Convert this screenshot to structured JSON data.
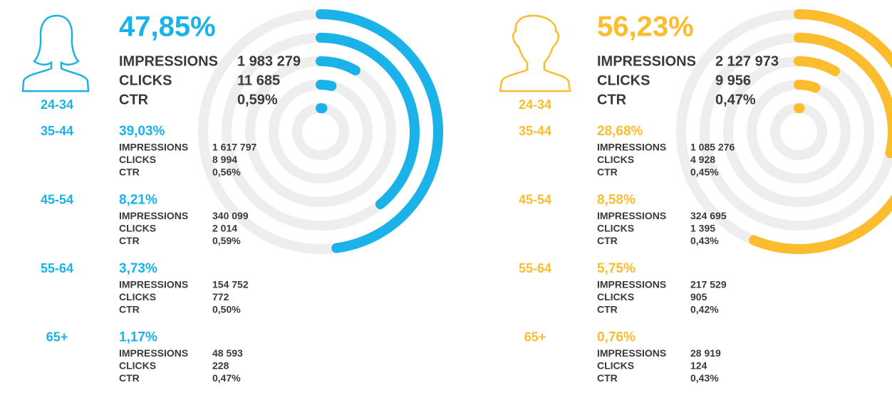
{
  "chart_data": [
    {
      "type": "radial-bar",
      "color": "#1ab2e8",
      "ylim": [
        0,
        100
      ],
      "metric_labels": [
        "IMPRESSIONS",
        "CLICKS",
        "CTR"
      ],
      "categories": [
        "24-34",
        "35-44",
        "45-54",
        "55-64",
        "65+"
      ],
      "values": [
        47.85,
        39.03,
        8.21,
        3.73,
        1.17
      ],
      "value_labels": [
        "47,85%",
        "39,03%",
        "8,21%",
        "3,73%",
        "1,17%"
      ],
      "impressions": [
        "1 983 279",
        "1 617 797",
        "340 099",
        "154 752",
        "48 593"
      ],
      "clicks": [
        "11 685",
        "8 994",
        "2 014",
        "772",
        "228"
      ],
      "ctr": [
        "0,59%",
        "0,56%",
        "0,59%",
        "0,50%",
        "0,47%"
      ]
    },
    {
      "type": "radial-bar",
      "color": "#fbbd2e",
      "ylim": [
        0,
        100
      ],
      "metric_labels": [
        "IMPRESSIONS",
        "CLICKS",
        "CTR"
      ],
      "categories": [
        "24-34",
        "35-44",
        "45-54",
        "55-64",
        "65+"
      ],
      "values": [
        56.23,
        28.68,
        8.58,
        5.75,
        0.76
      ],
      "value_labels": [
        "56,23%",
        "28,68%",
        "8,58%",
        "5,75%",
        "0,76%"
      ],
      "impressions": [
        "2 127 973",
        "1 085 276",
        "324 695",
        "217 529",
        "28 919"
      ],
      "clicks": [
        "9 956",
        "4 928",
        "1 395",
        "905",
        "124"
      ],
      "ctr": [
        "0,47%",
        "0,45%",
        "0,43%",
        "0,42%",
        "0,43%"
      ]
    }
  ]
}
